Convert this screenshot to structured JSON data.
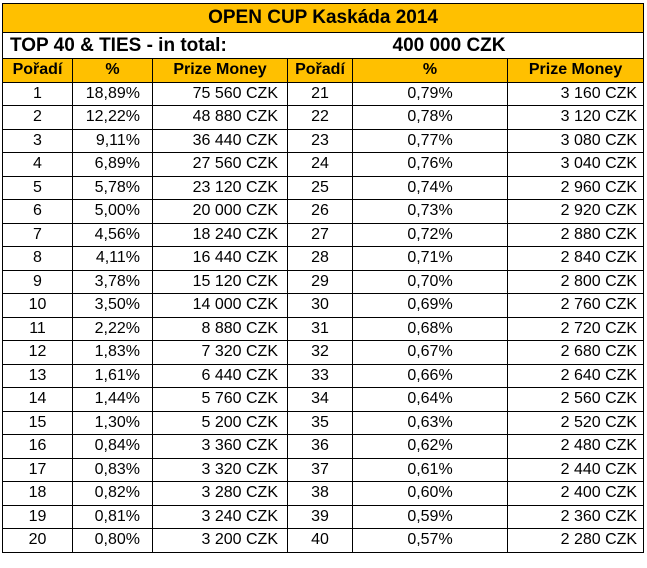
{
  "title": "OPEN CUP Kaskáda 2014",
  "total": {
    "label": "TOP 40 & TIES - in total:",
    "value": "400 000 CZK"
  },
  "headers": {
    "rank": "Pořadí",
    "pct": "%",
    "prize": "Prize Money",
    "rank2": "Pořadí",
    "pct2": "%",
    "prize2": "Prize Money"
  },
  "rows": [
    {
      "rank": "1",
      "pct": "18,89%",
      "prize": "75 560 CZK",
      "rank2": "21",
      "pct2": "0,79%",
      "prize2": "3 160 CZK"
    },
    {
      "rank": "2",
      "pct": "12,22%",
      "prize": "48 880 CZK",
      "rank2": "22",
      "pct2": "0,78%",
      "prize2": "3 120 CZK"
    },
    {
      "rank": "3",
      "pct": "9,11%",
      "prize": "36 440 CZK",
      "rank2": "23",
      "pct2": "0,77%",
      "prize2": "3 080 CZK"
    },
    {
      "rank": "4",
      "pct": "6,89%",
      "prize": "27 560 CZK",
      "rank2": "24",
      "pct2": "0,76%",
      "prize2": "3 040 CZK"
    },
    {
      "rank": "5",
      "pct": "5,78%",
      "prize": "23 120 CZK",
      "rank2": "25",
      "pct2": "0,74%",
      "prize2": "2 960 CZK"
    },
    {
      "rank": "6",
      "pct": "5,00%",
      "prize": "20 000 CZK",
      "rank2": "26",
      "pct2": "0,73%",
      "prize2": "2 920 CZK"
    },
    {
      "rank": "7",
      "pct": "4,56%",
      "prize": "18 240 CZK",
      "rank2": "27",
      "pct2": "0,72%",
      "prize2": "2 880 CZK"
    },
    {
      "rank": "8",
      "pct": "4,11%",
      "prize": "16 440 CZK",
      "rank2": "28",
      "pct2": "0,71%",
      "prize2": "2 840 CZK"
    },
    {
      "rank": "9",
      "pct": "3,78%",
      "prize": "15 120 CZK",
      "rank2": "29",
      "pct2": "0,70%",
      "prize2": "2 800 CZK"
    },
    {
      "rank": "10",
      "pct": "3,50%",
      "prize": "14 000 CZK",
      "rank2": "30",
      "pct2": "0,69%",
      "prize2": "2 760 CZK"
    },
    {
      "rank": "11",
      "pct": "2,22%",
      "prize": "8 880 CZK",
      "rank2": "31",
      "pct2": "0,68%",
      "prize2": "2 720 CZK"
    },
    {
      "rank": "12",
      "pct": "1,83%",
      "prize": "7 320 CZK",
      "rank2": "32",
      "pct2": "0,67%",
      "prize2": "2 680 CZK"
    },
    {
      "rank": "13",
      "pct": "1,61%",
      "prize": "6 440 CZK",
      "rank2": "33",
      "pct2": "0,66%",
      "prize2": "2 640 CZK"
    },
    {
      "rank": "14",
      "pct": "1,44%",
      "prize": "5 760 CZK",
      "rank2": "34",
      "pct2": "0,64%",
      "prize2": "2 560 CZK"
    },
    {
      "rank": "15",
      "pct": "1,30%",
      "prize": "5 200 CZK",
      "rank2": "35",
      "pct2": "0,63%",
      "prize2": "2 520 CZK"
    },
    {
      "rank": "16",
      "pct": "0,84%",
      "prize": "3 360 CZK",
      "rank2": "36",
      "pct2": "0,62%",
      "prize2": "2 480 CZK"
    },
    {
      "rank": "17",
      "pct": "0,83%",
      "prize": "3 320 CZK",
      "rank2": "37",
      "pct2": "0,61%",
      "prize2": "2 440 CZK"
    },
    {
      "rank": "18",
      "pct": "0,82%",
      "prize": "3 280 CZK",
      "rank2": "38",
      "pct2": "0,60%",
      "prize2": "2 400 CZK"
    },
    {
      "rank": "19",
      "pct": "0,81%",
      "prize": "3 240 CZK",
      "rank2": "39",
      "pct2": "0,59%",
      "prize2": "2 360 CZK"
    },
    {
      "rank": "20",
      "pct": "0,80%",
      "prize": "3 200 CZK",
      "rank2": "40",
      "pct2": "0,57%",
      "prize2": "2 280 CZK"
    }
  ]
}
